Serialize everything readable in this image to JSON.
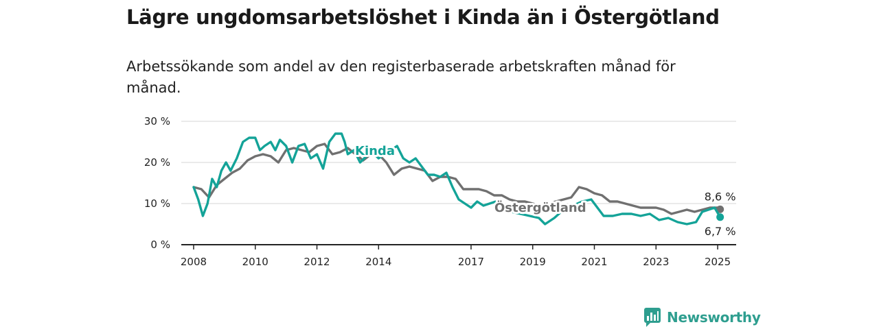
{
  "title": "Lägre ungdomsarbetslöshet i Kinda än i Östergötland",
  "subtitle": "Arbetssökande som andel av den registerbaserade arbetskraften månad för månad.",
  "brand": "Newsworthy",
  "colors": {
    "kinda": "#14a398",
    "ostergotland": "#707070",
    "grid": "#dddddd",
    "axis": "#222222"
  },
  "chart_data": {
    "type": "line",
    "ylim": [
      0,
      30
    ],
    "xlim": [
      2007.6,
      2025.6
    ],
    "y_ticks": [
      0,
      10,
      20,
      30
    ],
    "y_tick_labels": [
      "0 %",
      "10 %",
      "20 %",
      "30 %"
    ],
    "x_ticks": [
      2008,
      2010,
      2012,
      2014,
      2017,
      2019,
      2021,
      2023,
      2025
    ],
    "x_tick_labels": [
      "2008",
      "2010",
      "2012",
      "2014",
      "2017",
      "2019",
      "2021",
      "2023",
      "2025"
    ],
    "grid": true,
    "series": [
      {
        "name": "Östergötland",
        "color": "#707070",
        "end_label": "8,6 %",
        "x": [
          2008.0,
          2008.25,
          2008.5,
          2008.75,
          2009.0,
          2009.25,
          2009.5,
          2009.75,
          2010.0,
          2010.25,
          2010.5,
          2010.75,
          2011.0,
          2011.25,
          2011.5,
          2011.75,
          2012.0,
          2012.25,
          2012.5,
          2012.75,
          2013.0,
          2013.25,
          2013.5,
          2013.75,
          2014.0,
          2014.25,
          2014.5,
          2014.75,
          2015.0,
          2015.25,
          2015.5,
          2015.75,
          2016.0,
          2016.25,
          2016.5,
          2016.75,
          2017.0,
          2017.25,
          2017.5,
          2017.75,
          2018.0,
          2018.25,
          2018.5,
          2018.75,
          2019.0,
          2019.25,
          2019.5,
          2019.75,
          2020.0,
          2020.25,
          2020.5,
          2020.75,
          2021.0,
          2021.25,
          2021.5,
          2021.75,
          2022.0,
          2022.25,
          2022.5,
          2022.75,
          2023.0,
          2023.25,
          2023.5,
          2023.75,
          2024.0,
          2024.25,
          2024.5,
          2024.75,
          2025.0,
          2025.08
        ],
        "y": [
          14,
          13.5,
          11.5,
          14.5,
          16,
          17.5,
          18.5,
          20.5,
          21.5,
          22,
          21.5,
          20,
          23,
          23.5,
          23,
          22.5,
          24,
          24.5,
          22,
          22.5,
          23.5,
          22,
          20.5,
          22,
          22,
          20,
          17,
          18.5,
          19,
          18.5,
          18,
          15.5,
          16.5,
          16.5,
          16,
          13.5,
          13.5,
          13.5,
          13,
          12,
          12,
          11,
          10.5,
          10.5,
          10,
          9.5,
          10,
          10.5,
          11,
          11.5,
          14,
          13.5,
          12.5,
          12,
          10.5,
          10.5,
          10,
          9.5,
          9,
          9,
          9,
          8.5,
          7.5,
          8,
          8.5,
          8,
          8.5,
          9,
          9,
          8.6
        ]
      },
      {
        "name": "Kinda",
        "color": "#14a398",
        "end_label": "6,7 %",
        "x": [
          2008.0,
          2008.15,
          2008.3,
          2008.45,
          2008.6,
          2008.75,
          2008.9,
          2009.05,
          2009.2,
          2009.4,
          2009.6,
          2009.8,
          2010.0,
          2010.15,
          2010.3,
          2010.5,
          2010.65,
          2010.8,
          2011.0,
          2011.2,
          2011.4,
          2011.6,
          2011.8,
          2012.0,
          2012.2,
          2012.4,
          2012.6,
          2012.8,
          2012.9,
          2013.0,
          2013.2,
          2013.4,
          2013.6,
          2013.8,
          2014.0,
          2014.2,
          2014.4,
          2014.6,
          2014.8,
          2015.0,
          2015.2,
          2015.4,
          2015.6,
          2015.8,
          2016.0,
          2016.2,
          2016.4,
          2016.6,
          2016.8,
          2017.0,
          2017.2,
          2017.4,
          2017.6,
          2017.8,
          2018.0,
          2018.3,
          2018.6,
          2018.9,
          2019.2,
          2019.4,
          2019.7,
          2020.0,
          2020.3,
          2020.6,
          2020.9,
          2021.1,
          2021.3,
          2021.6,
          2021.9,
          2022.2,
          2022.5,
          2022.8,
          2023.1,
          2023.4,
          2023.7,
          2024.0,
          2024.3,
          2024.5,
          2024.7,
          2024.9,
          2025.08
        ],
        "y": [
          14,
          11,
          7,
          10,
          16,
          14,
          18,
          20,
          18,
          21,
          25,
          26,
          26,
          23,
          24,
          25,
          23,
          25.5,
          24,
          20,
          24,
          24.5,
          21,
          22,
          18.5,
          25,
          27,
          27,
          25,
          22,
          23,
          20,
          21.5,
          22.5,
          21,
          22,
          23,
          24,
          21,
          20,
          21,
          19,
          17,
          17,
          16.5,
          17.5,
          14,
          11,
          10,
          9,
          10.5,
          9.5,
          10,
          10.5,
          9,
          8,
          7.5,
          7,
          6.5,
          5,
          6.5,
          8.5,
          9.5,
          10.5,
          11,
          9,
          7,
          7,
          7.5,
          7.5,
          7,
          7.5,
          6,
          6.5,
          5.5,
          5,
          5.5,
          8,
          8.5,
          9,
          6.7
        ]
      }
    ]
  }
}
